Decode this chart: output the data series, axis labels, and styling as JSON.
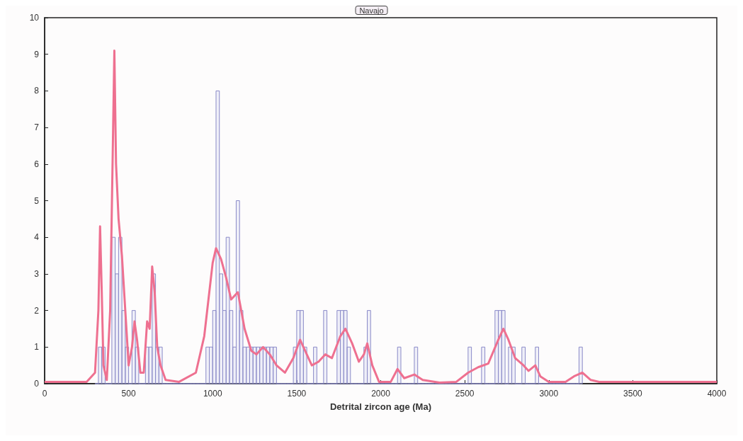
{
  "chart_data": {
    "type": "histogram",
    "title": "Navajo",
    "xlabel": "Detrital zircon age (Ma)",
    "bins": [
      300,
      320,
      340,
      360,
      380,
      400,
      420,
      440,
      460,
      480,
      500,
      520,
      540,
      560,
      580,
      600,
      620,
      640,
      660,
      680,
      700,
      720,
      740,
      760,
      780,
      800,
      820,
      840,
      860,
      880,
      900,
      920,
      940,
      960,
      980,
      1000,
      1020,
      1040,
      1060,
      1080,
      1100,
      1120,
      1140,
      1160,
      1180,
      1200,
      1220,
      1240,
      1260,
      1280,
      1300,
      1320,
      1340,
      1360,
      1380,
      1400,
      1420,
      1440,
      1460,
      1480,
      1500,
      1520,
      1540,
      1560,
      1580,
      1600,
      1620,
      1640,
      1660,
      1680,
      1700,
      1720,
      1740,
      1760,
      1780,
      1800,
      1820,
      1840,
      1860,
      1880,
      1900,
      1920,
      1940,
      1960,
      1980,
      2000,
      2020,
      2040,
      2060,
      2080,
      2100,
      2120,
      2140,
      2160,
      2180,
      2200,
      2220,
      2240,
      2260,
      2280,
      2300,
      2320,
      2340,
      2360,
      2380,
      2400,
      2420,
      2440,
      2460,
      2480,
      2500,
      2520,
      2540,
      2560,
      2580,
      2600,
      2620,
      2640,
      2660,
      2680,
      2700,
      2720,
      2740,
      2760,
      2780,
      2800,
      2820,
      2840,
      2860,
      2880,
      2900,
      2920,
      2940,
      2960,
      2980,
      3000,
      3020,
      3040,
      3060,
      3080,
      3100,
      3120,
      3140,
      3160,
      3180,
      3200
    ],
    "values": [
      0,
      1,
      1,
      0,
      0,
      4,
      3,
      4,
      2,
      1,
      0,
      2,
      1,
      0,
      0,
      1,
      1,
      3,
      1,
      1,
      0,
      0,
      0,
      0,
      0,
      0,
      0,
      0,
      0,
      0,
      0,
      0,
      0,
      1,
      1,
      2,
      8,
      3,
      2,
      4,
      2,
      1,
      5,
      2,
      1,
      1,
      1,
      1,
      1,
      1,
      1,
      1,
      1,
      1,
      0,
      0,
      0,
      0,
      0,
      1,
      2,
      2,
      1,
      0,
      0,
      1,
      0,
      0,
      2,
      0,
      0,
      0,
      2,
      2,
      2,
      1,
      0,
      0,
      0,
      0,
      1,
      2,
      0,
      0,
      0,
      0,
      0,
      0,
      0,
      0,
      1,
      0,
      0,
      0,
      0,
      1,
      0,
      0,
      0,
      0,
      0,
      0,
      0,
      0,
      0,
      0,
      0,
      0,
      0,
      0,
      0,
      1,
      0,
      0,
      0,
      1,
      0,
      0,
      0,
      2,
      2,
      2,
      0,
      1,
      1,
      0,
      0,
      1,
      0,
      0,
      0,
      1,
      0,
      0,
      0,
      0,
      0,
      0,
      0,
      0,
      0,
      0,
      0,
      0,
      1
    ],
    "color": "#8a8ac8",
    "series": [
      {
        "type": "line",
        "color": "#ee7090",
        "x": [
          0,
          250,
          300,
          320,
          330,
          340,
          350,
          370,
          390,
          405,
          415,
          425,
          440,
          460,
          480,
          500,
          520,
          535,
          550,
          570,
          590,
          610,
          625,
          640,
          655,
          670,
          690,
          720,
          800,
          900,
          950,
          1000,
          1020,
          1050,
          1080,
          1110,
          1150,
          1190,
          1230,
          1260,
          1300,
          1340,
          1380,
          1430,
          1480,
          1520,
          1550,
          1590,
          1630,
          1670,
          1710,
          1760,
          1790,
          1830,
          1870,
          1900,
          1920,
          1950,
          1990,
          2060,
          2100,
          2140,
          2200,
          2250,
          2350,
          2450,
          2520,
          2580,
          2640,
          2700,
          2730,
          2760,
          2800,
          2850,
          2880,
          2920,
          2950,
          3000,
          3100,
          3150,
          3200,
          3250,
          3300,
          3500,
          4000
        ],
        "values": [
          0.05,
          0.05,
          0.3,
          2,
          4.3,
          2.5,
          0.5,
          0.1,
          2,
          6.2,
          9.1,
          6,
          4.5,
          3.5,
          2,
          0.5,
          1,
          1.7,
          1.2,
          0.3,
          0.3,
          1.7,
          1.5,
          3.2,
          2.5,
          1,
          0.5,
          0.1,
          0.05,
          0.3,
          1.3,
          3.3,
          3.7,
          3.4,
          2.9,
          2.3,
          2.5,
          1.5,
          0.9,
          0.8,
          1,
          0.8,
          0.5,
          0.3,
          0.7,
          1.2,
          0.9,
          0.5,
          0.6,
          0.8,
          0.7,
          1.3,
          1.5,
          1.1,
          0.6,
          0.8,
          1.1,
          0.5,
          0.05,
          0.05,
          0.4,
          0.15,
          0.25,
          0.1,
          0.03,
          0.05,
          0.3,
          0.45,
          0.55,
          1.2,
          1.5,
          1.2,
          0.7,
          0.5,
          0.35,
          0.5,
          0.2,
          0.05,
          0.05,
          0.2,
          0.3,
          0.1,
          0.05,
          0.05,
          0.05
        ]
      }
    ],
    "xlim": [
      0,
      4000
    ],
    "xticks": [
      0,
      500,
      1000,
      1500,
      2000,
      2500,
      3000,
      3500,
      4000
    ],
    "ylim": [
      0,
      10
    ],
    "yticks": [
      0,
      1,
      2,
      3,
      4,
      5,
      6,
      7,
      8,
      9,
      10
    ],
    "marker": "none"
  }
}
